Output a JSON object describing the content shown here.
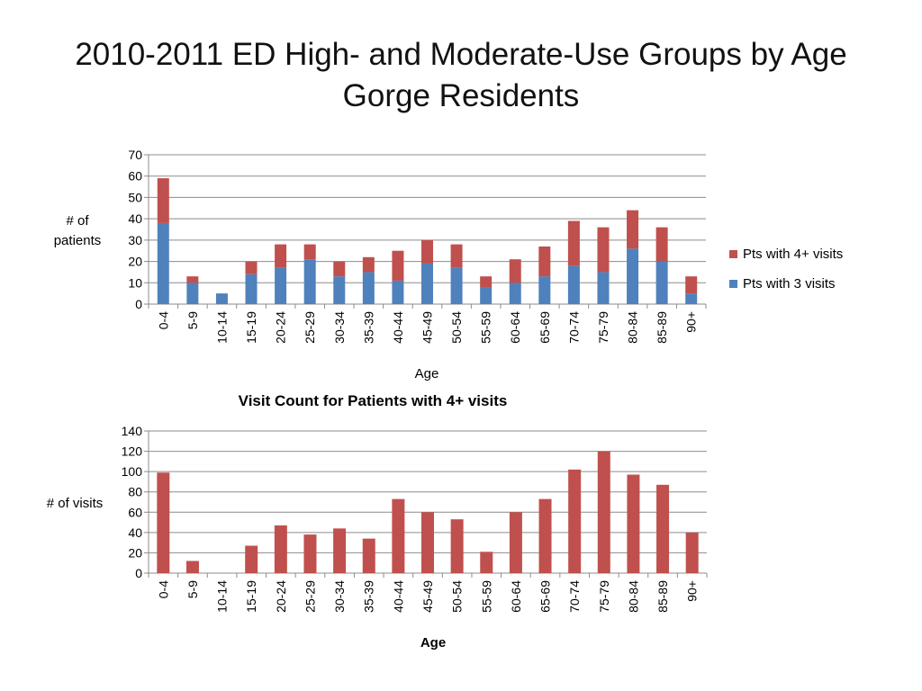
{
  "slide": {
    "title_line1": "2010-2011 ED High- and Moderate-Use Groups by Age",
    "title_line2": "Gorge Residents"
  },
  "chart_data": [
    {
      "type": "bar",
      "stacked": true,
      "title": "",
      "categories": [
        "0-4",
        "5-9",
        "10-14",
        "15-19",
        "20-24",
        "25-29",
        "30-34",
        "35-39",
        "40-44",
        "45-49",
        "50-54",
        "55-59",
        "60-64",
        "65-69",
        "70-74",
        "75-79",
        "80-84",
        "85-89",
        "90+"
      ],
      "series": [
        {
          "name": "Pts with 3 visits",
          "color": "#4F81BD",
          "values": [
            38,
            10,
            5,
            14,
            17,
            21,
            13,
            15,
            11,
            19,
            17,
            8,
            10,
            13,
            18,
            15,
            26,
            20,
            5
          ]
        },
        {
          "name": "Pts with 4+ visits",
          "color": "#C0504D",
          "values": [
            21,
            3,
            0,
            6,
            11,
            7,
            7,
            7,
            14,
            11,
            11,
            5,
            11,
            14,
            21,
            21,
            18,
            16,
            8
          ]
        }
      ],
      "xlabel": "Age",
      "ylabel": "# of patients",
      "ylim": [
        0,
        70
      ],
      "yticks": [
        0,
        10,
        20,
        30,
        40,
        50,
        60,
        70
      ],
      "grid": true,
      "legend": "right"
    },
    {
      "type": "bar",
      "title": "Visit Count for Patients with 4+ visits",
      "categories": [
        "0-4",
        "5-9",
        "10-14",
        "15-19",
        "20-24",
        "25-29",
        "30-34",
        "35-39",
        "40-44",
        "45-49",
        "50-54",
        "55-59",
        "60-64",
        "65-69",
        "70-74",
        "75-79",
        "80-84",
        "85-89",
        "90+"
      ],
      "series": [
        {
          "color": "#C0504D",
          "values": [
            99,
            12,
            0,
            27,
            47,
            38,
            44,
            34,
            73,
            60,
            53,
            21,
            60,
            73,
            102,
            120,
            97,
            87,
            40
          ]
        }
      ],
      "xlabel": "Age",
      "ylabel": "# of visits",
      "ylim": [
        0,
        140
      ],
      "yticks": [
        0,
        20,
        40,
        60,
        80,
        100,
        120,
        140
      ],
      "grid": true,
      "legend": "none"
    }
  ]
}
